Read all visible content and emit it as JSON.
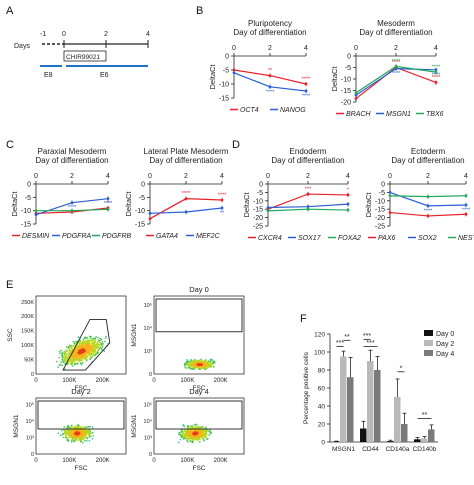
{
  "colors": {
    "red": "#e8202a",
    "blue": "#2c5fd6",
    "green": "#22a85a",
    "timeline_blue": "#1f73c7",
    "bar_day0": "#111111",
    "bar_day2": "#b9b9b9",
    "bar_day4": "#7a7a7a"
  },
  "panel_letters": [
    "A",
    "B",
    "C",
    "D",
    "E",
    "F"
  ],
  "timeline": {
    "days_label": "Days",
    "ticks": [
      "-1",
      "0",
      "2",
      "4"
    ],
    "chir_label": "CHIR99021",
    "e8_label": "E8",
    "e6_label": "E6"
  },
  "line_common": {
    "subtitle": "Day of differentiation",
    "ylabel": "DeltaCt",
    "x_ticks": [
      "0",
      "2",
      "4"
    ]
  },
  "chart_data": [
    {
      "panel": "B",
      "type": "line",
      "title": "Pluripotency",
      "x": [
        0,
        2,
        4
      ],
      "ylim": [
        -15,
        0
      ],
      "yticks": [
        "0",
        "-5",
        "-10",
        "-15"
      ],
      "series": [
        {
          "name": "OCT4",
          "color": "red",
          "values": [
            -5,
            -7,
            -10
          ],
          "sig": [
            "",
            "**",
            "****"
          ]
        },
        {
          "name": "NANOG",
          "color": "blue",
          "values": [
            -6,
            -11,
            -12.5
          ],
          "sig": [
            "",
            "****",
            "****"
          ]
        }
      ]
    },
    {
      "panel": "B",
      "type": "line",
      "title": "Mesoderm",
      "x": [
        0,
        2,
        4
      ],
      "ylim": [
        -20,
        0
      ],
      "yticks": [
        "0",
        "-5",
        "-10",
        "-15",
        "-20"
      ],
      "series": [
        {
          "name": "BRACH",
          "color": "red",
          "values": [
            -18.5,
            -5,
            -11.5
          ],
          "sig": [
            "",
            "****",
            "****"
          ]
        },
        {
          "name": "MSGN1",
          "color": "blue",
          "values": [
            -17,
            -5.5,
            -6
          ],
          "sig": [
            "",
            "****",
            "****"
          ]
        },
        {
          "name": "TBX6",
          "color": "green",
          "values": [
            -16,
            -4.5,
            -7
          ],
          "sig": [
            "",
            "****",
            "****"
          ]
        }
      ]
    },
    {
      "panel": "C",
      "type": "line",
      "title": "Paraxial Mesoderm",
      "x": [
        0,
        2,
        4
      ],
      "ylim": [
        -15,
        0
      ],
      "yticks": [
        "0",
        "-5",
        "-10",
        "-15"
      ],
      "series": [
        {
          "name": "DESMIN",
          "color": "red",
          "values": [
            -11,
            -10.5,
            -9
          ],
          "sig": [
            "",
            "",
            "*"
          ]
        },
        {
          "name": "PDGFRA",
          "color": "blue",
          "values": [
            -11.5,
            -7,
            -5.5
          ],
          "sig": [
            "",
            "****",
            "****"
          ]
        },
        {
          "name": "PDGFRB",
          "color": "green",
          "values": [
            -10,
            -10,
            -9.5
          ],
          "sig": [
            "",
            "",
            ""
          ]
        }
      ]
    },
    {
      "panel": "C",
      "type": "line",
      "title": "Lateral Plate Mesoderm",
      "x": [
        0,
        2,
        4
      ],
      "ylim": [
        -15,
        0
      ],
      "yticks": [
        "0",
        "-5",
        "-10",
        "-15"
      ],
      "series": [
        {
          "name": "GATA4",
          "color": "red",
          "values": [
            -13,
            -5.5,
            -6
          ],
          "sig": [
            "",
            "****",
            "****"
          ]
        },
        {
          "name": "MEF2C",
          "color": "blue",
          "values": [
            -11,
            -10.5,
            -9
          ],
          "sig": [
            "",
            "",
            "**"
          ]
        }
      ]
    },
    {
      "panel": "D",
      "type": "line",
      "title": "Endoderm",
      "x": [
        0,
        2,
        4
      ],
      "ylim": [
        -25,
        0
      ],
      "yticks": [
        "0",
        "-5",
        "-10",
        "-15",
        "-20",
        "-25"
      ],
      "series": [
        {
          "name": "CXCR4",
          "color": "red",
          "values": [
            -15,
            -6,
            -6.5
          ],
          "sig": [
            "",
            "***",
            "*"
          ]
        },
        {
          "name": "SOX17",
          "color": "blue",
          "values": [
            -14,
            -13.5,
            -12
          ],
          "sig": [
            "",
            "",
            ""
          ]
        },
        {
          "name": "FOXA2",
          "color": "green",
          "values": [
            -16,
            -15,
            -15.5
          ],
          "sig": [
            "",
            "",
            ""
          ]
        }
      ]
    },
    {
      "panel": "D",
      "type": "line",
      "title": "Ectoderm",
      "x": [
        0,
        2,
        4
      ],
      "ylim": [
        -25,
        0
      ],
      "yticks": [
        "0",
        "-5",
        "-10",
        "-15",
        "-20",
        "-25"
      ],
      "series": [
        {
          "name": "PAX6",
          "color": "red",
          "values": [
            -17,
            -19,
            -18
          ],
          "sig": [
            "",
            "",
            ""
          ]
        },
        {
          "name": "SOX2",
          "color": "blue",
          "values": [
            -5,
            -13,
            -12.5
          ],
          "sig": [
            "",
            "****",
            "****"
          ]
        },
        {
          "name": "NESTIN",
          "color": "green",
          "values": [
            -7,
            -7.5,
            -7
          ],
          "sig": [
            "",
            "",
            ""
          ]
        }
      ]
    },
    {
      "panel": "F",
      "type": "bar",
      "ylabel": "Percentage positive cells",
      "ylim": [
        0,
        120
      ],
      "yticks": [
        "0",
        "20",
        "40",
        "60",
        "80",
        "100",
        "120"
      ],
      "categories": [
        "MSGN1",
        "CD44",
        "CD140a",
        "CD140b"
      ],
      "series": [
        {
          "name": "Day 0",
          "color": "bar_day0",
          "values": [
            0.5,
            15,
            1,
            3
          ],
          "errors": [
            0.5,
            8,
            1,
            2
          ]
        },
        {
          "name": "Day 2",
          "color": "bar_day2",
          "values": [
            95,
            90,
            50,
            4
          ],
          "errors": [
            6,
            12,
            20,
            2
          ]
        },
        {
          "name": "Day 4",
          "color": "bar_day4",
          "values": [
            72,
            80,
            20,
            14
          ],
          "errors": [
            22,
            15,
            12,
            5
          ]
        }
      ],
      "significance": [
        {
          "label": "**",
          "cat": 0,
          "from": 1,
          "to": 2,
          "y": 113
        },
        {
          "label": "***",
          "cat": 0,
          "from": 0,
          "to": 1,
          "y": 106
        },
        {
          "label": "***",
          "cat": 1,
          "from": 0,
          "to": 1,
          "y": 114
        },
        {
          "label": "***",
          "cat": 1,
          "from": 0,
          "to": 2,
          "y": 106
        },
        {
          "label": "*",
          "cat": 2,
          "from": 1,
          "to": 2,
          "y": 78
        },
        {
          "label": "**",
          "cat": 3,
          "from": 0,
          "to": 2,
          "y": 26
        }
      ]
    }
  ],
  "flow": {
    "plots": [
      {
        "title": "",
        "xlabel": "FSC",
        "ylabel": "SSC",
        "xticks": [
          "0",
          "100K",
          "200K"
        ],
        "yticks": [
          "0",
          "50K",
          "100K",
          "150K",
          "200K",
          "250K"
        ]
      },
      {
        "title": "Day 0",
        "xlabel": "FSC",
        "ylabel": "MSGN1",
        "xticks": [
          "0",
          "100K",
          "200K"
        ],
        "yticks": [
          "0",
          "10³",
          "10⁴",
          "10⁵"
        ]
      },
      {
        "title": "Day 2",
        "xlabel": "FSC",
        "ylabel": "MSGN1",
        "xticks": [
          "0",
          "100K",
          "200K"
        ],
        "yticks": [
          "0",
          "10³",
          "10⁴",
          "10⁵"
        ]
      },
      {
        "title": "Day 4",
        "xlabel": "FSC",
        "ylabel": "MSGN1",
        "xticks": [
          "0",
          "100K",
          "200K"
        ],
        "yticks": [
          "0",
          "10³",
          "10⁴",
          "10⁵"
        ]
      }
    ]
  }
}
